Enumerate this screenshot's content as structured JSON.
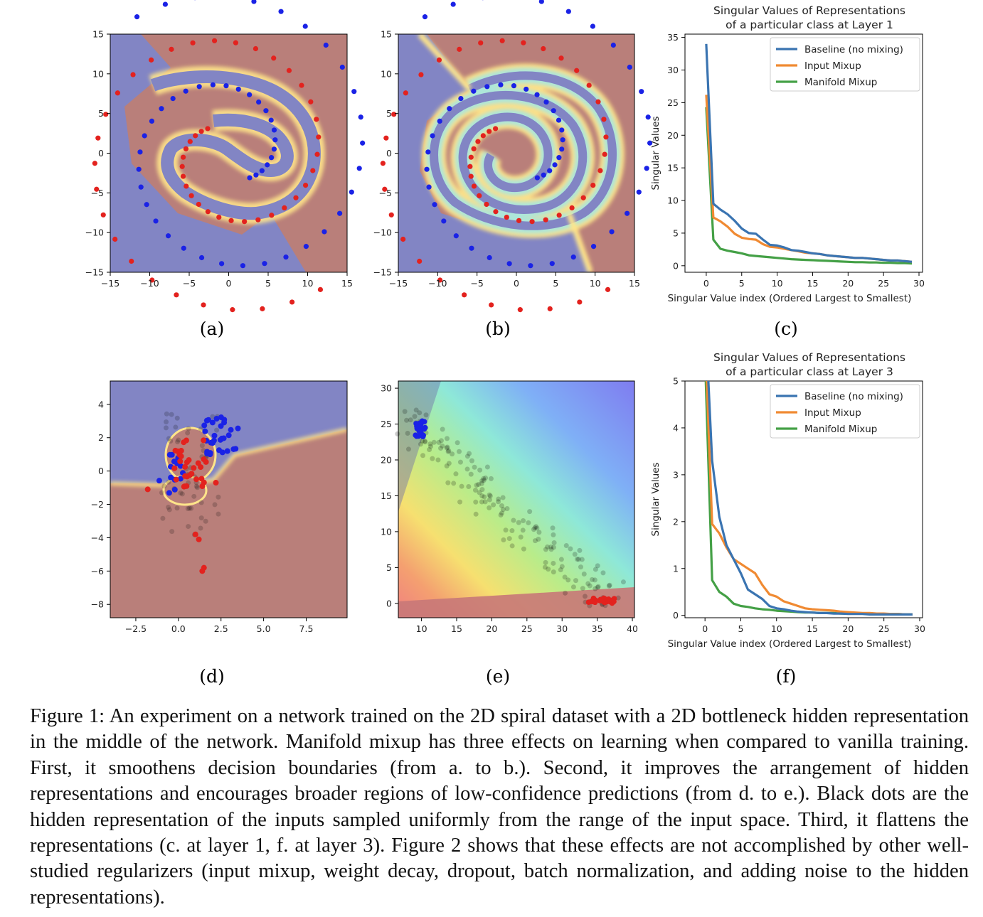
{
  "figure": {
    "caption": "Figure 1: An experiment on a network trained on the 2D spiral dataset with a 2D bottleneck hidden representation in the middle of the network. Manifold mixup has three effects on learning when compared to vanilla training. First, it smoothens decision boundaries (from a. to b.). Second, it improves the arrangement of hidden representations and encourages broader regions of low-confidence predictions (from d. to e.). Black dots are the hidden representation of the inputs sampled uniformly from the range of the input space. Third, it flattens the representations (c. at layer 1, f. at layer 3). Figure 2 shows that these effects are not accomplished by other well-studied regularizers (input mixup, weight decay, dropout, batch normalization, and adding noise to the hidden representations).",
    "colors": {
      "blue_class": "#1a22e6",
      "red_class": "#e3221e",
      "baseline": "#3a74b1",
      "input_mixup": "#f08a32",
      "manifold_mixup": "#44a046",
      "region_blue": "#8285c4",
      "region_red": "#b97f7a"
    }
  },
  "panels": {
    "a": {
      "label": "(a)",
      "xticks": [
        "−15",
        "−10",
        "−5",
        "0",
        "5",
        "10",
        "15"
      ],
      "yticks": [
        "15",
        "10",
        "5",
        "0",
        "−5",
        "−10",
        "−15"
      ]
    },
    "b": {
      "label": "(b)",
      "xticks": [
        "−15",
        "−10",
        "−5",
        "0",
        "5",
        "10",
        "15"
      ],
      "yticks": [
        "15",
        "10",
        "5",
        "0",
        "−5",
        "−10",
        "−15"
      ]
    },
    "c": {
      "label": "(c)"
    },
    "d": {
      "label": "(d)",
      "xticks": [
        "−2.5",
        "0.0",
        "2.5",
        "5.0",
        "7.5"
      ],
      "yticks": [
        "4",
        "2",
        "0",
        "−2",
        "−4",
        "−6",
        "−8"
      ]
    },
    "e": {
      "label": "(e)",
      "xticks": [
        "10",
        "15",
        "20",
        "25",
        "30",
        "35",
        "40"
      ],
      "yticks": [
        "30",
        "25",
        "20",
        "15",
        "10",
        "5",
        "0"
      ]
    },
    "f": {
      "label": "(f)"
    }
  },
  "chart_data": [
    {
      "id": "c",
      "type": "line",
      "title": "Singular Values of Representations\n    of a particular class at Layer 1",
      "xlabel": "Singular Value index (Ordered Largest to Smallest)",
      "ylabel": "Singular Values",
      "xlim": [
        -3,
        30.5
      ],
      "ylim": [
        -1,
        35.5
      ],
      "xticks": [
        0,
        5,
        10,
        15,
        20,
        25,
        30
      ],
      "yticks": [
        0,
        5,
        10,
        15,
        20,
        25,
        30,
        35
      ],
      "legend": "top-right",
      "x": [
        0,
        1,
        2,
        3,
        4,
        5,
        6,
        7,
        8,
        9,
        10,
        11,
        12,
        13,
        14,
        15,
        16,
        17,
        18,
        19,
        20,
        21,
        22,
        23,
        24,
        25,
        26,
        27,
        28,
        29
      ],
      "series": [
        {
          "name": "Baseline (no mixing)",
          "color": "#3a74b1",
          "values": [
            34,
            9.5,
            8.6,
            7.9,
            6.9,
            5.7,
            5.0,
            4.9,
            4.0,
            3.2,
            3.1,
            2.8,
            2.4,
            2.3,
            2.1,
            1.9,
            1.8,
            1.6,
            1.5,
            1.4,
            1.3,
            1.2,
            1.2,
            1.1,
            1.0,
            0.9,
            0.8,
            0.8,
            0.7,
            0.6
          ]
        },
        {
          "name": "Input Mixup",
          "color": "#f08a32",
          "values": [
            26.2,
            7.4,
            6.8,
            6.0,
            4.9,
            4.3,
            4.1,
            4.0,
            3.3,
            2.9,
            2.8,
            2.6,
            2.4,
            2.2,
            2.0,
            1.9,
            1.8,
            1.6,
            1.5,
            1.4,
            1.3,
            1.2,
            1.2,
            1.1,
            1.0,
            0.9,
            0.8,
            0.8,
            0.7,
            0.6
          ]
        },
        {
          "name": "Manifold Mixup",
          "color": "#44a046",
          "values": [
            24.3,
            4.0,
            2.6,
            2.3,
            2.1,
            1.9,
            1.6,
            1.5,
            1.4,
            1.3,
            1.2,
            1.1,
            1.0,
            0.95,
            0.9,
            0.85,
            0.8,
            0.75,
            0.7,
            0.65,
            0.6,
            0.55,
            0.55,
            0.5,
            0.5,
            0.45,
            0.45,
            0.4,
            0.4,
            0.35
          ]
        }
      ]
    },
    {
      "id": "f",
      "type": "line",
      "title": "Singular Values of Representations\n    of a particular class at Layer 3",
      "xlabel": "Singular Value index (Ordered Largest to Smallest)",
      "ylabel": "Singular Values",
      "xlim": [
        -2.8,
        30.4
      ],
      "ylim": [
        -0.05,
        5
      ],
      "xticks": [
        0,
        5,
        10,
        15,
        20,
        25,
        30
      ],
      "yticks": [
        0,
        1,
        2,
        3,
        4,
        5
      ],
      "legend": "top-right",
      "x": [
        0,
        1,
        2,
        3,
        4,
        5,
        6,
        7,
        8,
        9,
        10,
        11,
        12,
        13,
        14,
        15,
        16,
        17,
        18,
        19,
        20,
        21,
        22,
        23,
        24,
        25,
        26,
        27,
        28,
        29
      ],
      "series": [
        {
          "name": "Baseline (no mixing)",
          "color": "#3a74b1",
          "values": [
            6.5,
            3.3,
            2.1,
            1.5,
            1.2,
            0.9,
            0.55,
            0.45,
            0.35,
            0.2,
            0.15,
            0.13,
            0.1,
            0.08,
            0.07,
            0.06,
            0.05,
            0.05,
            0.04,
            0.04,
            0.03,
            0.03,
            0.03,
            0.02,
            0.02,
            0.02,
            0.02,
            0.02,
            0.02,
            0.02
          ]
        },
        {
          "name": "Input Mixup",
          "color": "#f08a32",
          "values": [
            6.0,
            1.95,
            1.75,
            1.45,
            1.2,
            1.1,
            1.0,
            0.9,
            0.65,
            0.45,
            0.4,
            0.3,
            0.25,
            0.2,
            0.15,
            0.13,
            0.12,
            0.11,
            0.1,
            0.08,
            0.07,
            0.06,
            0.05,
            0.05,
            0.04,
            0.04,
            0.03,
            0.03,
            0.02,
            0.02
          ]
        },
        {
          "name": "Manifold Mixup",
          "color": "#44a046",
          "values": [
            5.5,
            0.75,
            0.5,
            0.4,
            0.25,
            0.2,
            0.18,
            0.15,
            0.13,
            0.12,
            0.1,
            0.09,
            0.08,
            0.07,
            0.06,
            0.06,
            0.05,
            0.05,
            0.05,
            0.04,
            0.04,
            0.04,
            0.04,
            0.03,
            0.03,
            0.03,
            0.03,
            0.03,
            0.02,
            0.02
          ]
        }
      ]
    }
  ]
}
